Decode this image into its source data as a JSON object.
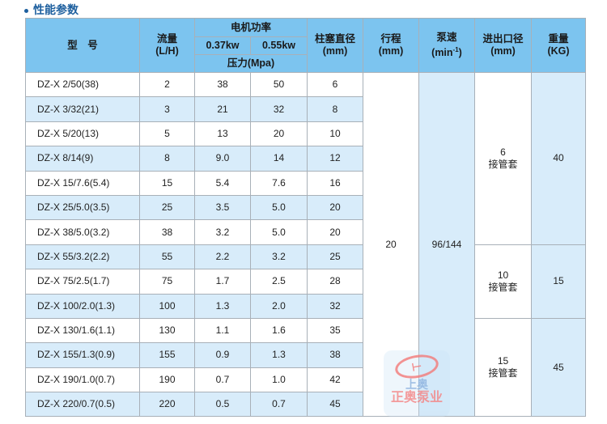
{
  "section_title": "性能参数",
  "headers": {
    "model": "型　号",
    "flow": "流量",
    "flow_unit": "(L/H)",
    "power": "电机功率",
    "p1": "0.37kw",
    "p2": "0.55kw",
    "pressure": "压力(Mpa)",
    "plunger": "柱塞直径",
    "plunger_unit": "(mm)",
    "stroke": "行程",
    "stroke_unit": "(mm)",
    "speed": "泵速",
    "speed_unit": "(min",
    "speed_sup": "-1",
    "speed_close": ")",
    "port": "进出口径",
    "port_unit": "(mm)",
    "weight": "重量",
    "weight_unit": "(KG)"
  },
  "rows": [
    {
      "model": "DZ-X 2/50(38)",
      "flow": "2",
      "p037": "38",
      "p055": "50",
      "plunger": "6"
    },
    {
      "model": "DZ-X 3/32(21)",
      "flow": "3",
      "p037": "21",
      "p055": "32",
      "plunger": "8"
    },
    {
      "model": "DZ-X 5/20(13)",
      "flow": "5",
      "p037": "13",
      "p055": "20",
      "plunger": "10"
    },
    {
      "model": "DZ-X 8/14(9)",
      "flow": "8",
      "p037": "9.0",
      "p055": "14",
      "plunger": "12"
    },
    {
      "model": "DZ-X 15/7.6(5.4)",
      "flow": "15",
      "p037": "5.4",
      "p055": "7.6",
      "plunger": "16"
    },
    {
      "model": "DZ-X 25/5.0(3.5)",
      "flow": "25",
      "p037": "3.5",
      "p055": "5.0",
      "plunger": "20"
    },
    {
      "model": "DZ-X 38/5.0(3.2)",
      "flow": "38",
      "p037": "3.2",
      "p055": "5.0",
      "plunger": "20"
    },
    {
      "model": "DZ-X 55/3.2(2.2)",
      "flow": "55",
      "p037": "2.2",
      "p055": "3.2",
      "plunger": "25"
    },
    {
      "model": "DZ-X 75/2.5(1.7)",
      "flow": "75",
      "p037": "1.7",
      "p055": "2.5",
      "plunger": "28"
    },
    {
      "model": "DZ-X 100/2.0(1.3)",
      "flow": "100",
      "p037": "1.3",
      "p055": "2.0",
      "plunger": "32"
    },
    {
      "model": "DZ-X 130/1.6(1.1)",
      "flow": "130",
      "p037": "1.1",
      "p055": "1.6",
      "plunger": "35"
    },
    {
      "model": "DZ-X 155/1.3(0.9)",
      "flow": "155",
      "p037": "0.9",
      "p055": "1.3",
      "plunger": "38"
    },
    {
      "model": "DZ-X 190/1.0(0.7)",
      "flow": "190",
      "p037": "0.7",
      "p055": "1.0",
      "plunger": "42"
    },
    {
      "model": "DZ-X 220/0.7(0.5)",
      "flow": "220",
      "p037": "0.5",
      "p055": "0.7",
      "plunger": "45"
    }
  ],
  "merged": {
    "stroke": "20",
    "speed": "96/144",
    "groups": [
      {
        "port": "6",
        "port_note": "接管套",
        "weight": "40"
      },
      {
        "port": "10",
        "port_note": "接管套",
        "weight": "15"
      },
      {
        "port": "15",
        "port_note": "接管套",
        "weight": "45"
      }
    ]
  },
  "watermark": {
    "line1": "上奥",
    "line2": "正奥泵业"
  }
}
